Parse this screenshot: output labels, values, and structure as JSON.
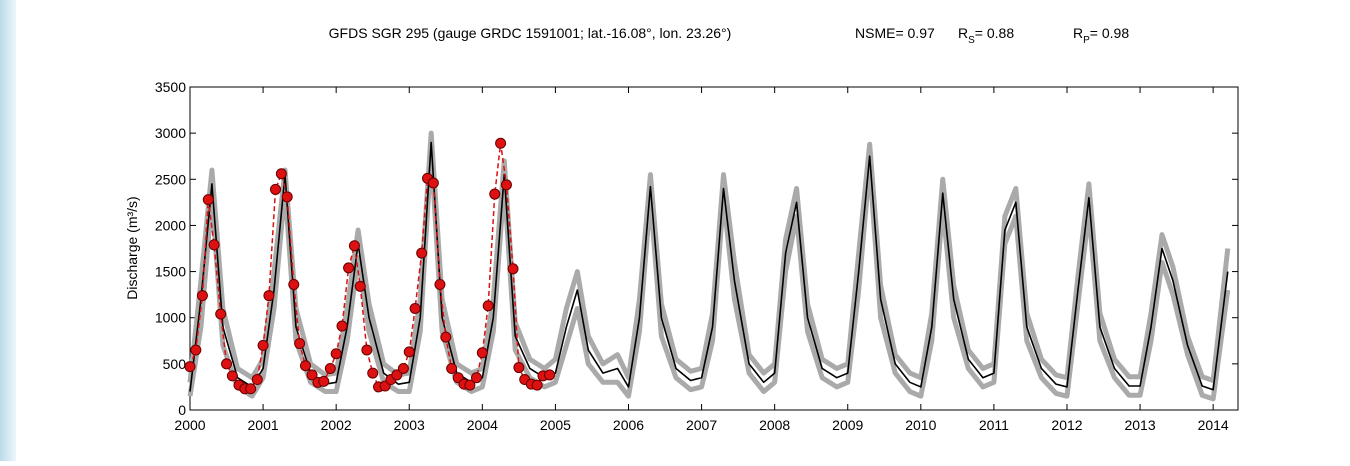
{
  "chart_data": {
    "type": "line",
    "title": "GFDS SGR 295 (gauge GRDC 1591001; lat.-16.08°, lon. 23.26°)",
    "stats": [
      {
        "main": "NSME= 0.97"
      },
      {
        "main": "R",
        "sub": "S",
        "rest": "=  0.88"
      },
      {
        "main": "R",
        "sub": "P",
        "rest": "= 0.98"
      }
    ],
    "y_label": "Discharge (m³/s)",
    "xlim": [
      2000,
      2014.34
    ],
    "xticks": [
      2000,
      2001,
      2002,
      2003,
      2004,
      2005,
      2006,
      2007,
      2008,
      2009,
      2010,
      2011,
      2012,
      2013,
      2014
    ],
    "ylim": [
      0,
      3500
    ],
    "yticks": [
      0,
      500,
      1000,
      1500,
      2000,
      2500,
      3000,
      3500
    ],
    "series": [
      {
        "color": "#aaaaaa",
        "width": 5,
        "marker": false,
        "dashed": false,
        "x": [
          2000,
          2000.15,
          2000.3,
          2000.45,
          2000.65,
          2000.85,
          2001,
          2001.15,
          2001.3,
          2001.45,
          2001.65,
          2001.85,
          2002,
          2002.15,
          2002.3,
          2002.45,
          2002.65,
          2002.85,
          2003,
          2003.15,
          2003.3,
          2003.45,
          2003.65,
          2003.85,
          2004,
          2004.15,
          2004.3,
          2004.45,
          2004.65,
          2004.85,
          2005,
          2005.15,
          2005.3,
          2005.45,
          2005.65,
          2005.85,
          2006,
          2006.15,
          2006.3,
          2006.45,
          2006.65,
          2006.85,
          2007,
          2007.15,
          2007.3,
          2007.45,
          2007.65,
          2007.85,
          2008,
          2008.15,
          2008.3,
          2008.45,
          2008.65,
          2008.85,
          2009,
          2009.15,
          2009.3,
          2009.45,
          2009.65,
          2009.85,
          2010,
          2010.15,
          2010.3,
          2010.45,
          2010.65,
          2010.85,
          2011,
          2011.15,
          2011.3,
          2011.45,
          2011.65,
          2011.85,
          2012,
          2012.15,
          2012.3,
          2012.45,
          2012.65,
          2012.85,
          2013,
          2013.15,
          2013.3,
          2013.45,
          2013.65,
          2013.85,
          2014,
          2014.2
        ],
        "values": [
          150,
          900,
          2300,
          700,
          250,
          150,
          350,
          1100,
          2400,
          750,
          300,
          200,
          200,
          750,
          1650,
          850,
          300,
          200,
          200,
          850,
          2800,
          850,
          300,
          200,
          250,
          850,
          2450,
          650,
          350,
          250,
          300,
          700,
          1100,
          500,
          300,
          300,
          150,
          850,
          2300,
          800,
          350,
          220,
          250,
          750,
          2300,
          1200,
          400,
          200,
          300,
          1500,
          2100,
          850,
          350,
          250,
          300,
          1300,
          2650,
          1000,
          400,
          200,
          150,
          750,
          2200,
          1000,
          450,
          250,
          300,
          1800,
          2100,
          750,
          350,
          180,
          150,
          1150,
          2150,
          750,
          350,
          160,
          160,
          750,
          1600,
          1250,
          600,
          160,
          120,
          1300
        ]
      },
      {
        "color": "#aaaaaa",
        "width": 5,
        "marker": false,
        "dashed": false,
        "x": [
          2000,
          2000.15,
          2000.3,
          2000.45,
          2000.65,
          2000.85,
          2001,
          2001.15,
          2001.3,
          2001.45,
          2001.65,
          2001.85,
          2002,
          2002.15,
          2002.3,
          2002.45,
          2002.65,
          2002.85,
          2003,
          2003.15,
          2003.3,
          2003.45,
          2003.65,
          2003.85,
          2004,
          2004.15,
          2004.3,
          2004.45,
          2004.65,
          2004.85,
          2005,
          2005.15,
          2005.3,
          2005.45,
          2005.65,
          2005.85,
          2006,
          2006.15,
          2006.3,
          2006.45,
          2006.65,
          2006.85,
          2007,
          2007.15,
          2007.3,
          2007.45,
          2007.65,
          2007.85,
          2008,
          2008.15,
          2008.3,
          2008.45,
          2008.65,
          2008.85,
          2009,
          2009.15,
          2009.3,
          2009.45,
          2009.65,
          2009.85,
          2010,
          2010.15,
          2010.3,
          2010.45,
          2010.65,
          2010.85,
          2011,
          2011.15,
          2011.3,
          2011.45,
          2011.65,
          2011.85,
          2012,
          2012.15,
          2012.3,
          2012.45,
          2012.65,
          2012.85,
          2013,
          2013.15,
          2013.3,
          2013.45,
          2013.65,
          2013.85,
          2014,
          2014.2
        ],
        "values": [
          300,
          1400,
          2600,
          1100,
          450,
          350,
          550,
          1500,
          2600,
          1100,
          500,
          380,
          400,
          1100,
          1950,
          1150,
          500,
          380,
          400,
          1200,
          3000,
          1200,
          500,
          400,
          450,
          1200,
          2700,
          950,
          550,
          450,
          550,
          1100,
          1500,
          800,
          500,
          600,
          350,
          1200,
          2550,
          1150,
          550,
          420,
          450,
          1050,
          2550,
          1600,
          600,
          400,
          500,
          1850,
          2400,
          1150,
          550,
          450,
          500,
          1700,
          2880,
          1350,
          600,
          400,
          350,
          1050,
          2500,
          1350,
          650,
          450,
          500,
          2100,
          2400,
          1050,
          550,
          380,
          350,
          1450,
          2450,
          1050,
          550,
          360,
          360,
          1050,
          1900,
          1550,
          800,
          360,
          320,
          1750
        ]
      },
      {
        "color": "#000000",
        "width": 1.6,
        "marker": false,
        "dashed": false,
        "x": [
          2000,
          2000.15,
          2000.3,
          2000.45,
          2000.65,
          2000.85,
          2001,
          2001.15,
          2001.3,
          2001.45,
          2001.65,
          2001.85,
          2002,
          2002.15,
          2002.3,
          2002.45,
          2002.65,
          2002.85,
          2003,
          2003.15,
          2003.3,
          2003.45,
          2003.65,
          2003.85,
          2004,
          2004.15,
          2004.3,
          2004.45,
          2004.65,
          2004.85,
          2005,
          2005.15,
          2005.3,
          2005.45,
          2005.65,
          2005.85,
          2006,
          2006.15,
          2006.3,
          2006.45,
          2006.65,
          2006.85,
          2007,
          2007.15,
          2007.3,
          2007.45,
          2007.65,
          2007.85,
          2008,
          2008.15,
          2008.3,
          2008.45,
          2008.65,
          2008.85,
          2009,
          2009.15,
          2009.3,
          2009.45,
          2009.65,
          2009.85,
          2010,
          2010.15,
          2010.3,
          2010.45,
          2010.65,
          2010.85,
          2011,
          2011.15,
          2011.3,
          2011.45,
          2011.65,
          2011.85,
          2012,
          2012.15,
          2012.3,
          2012.45,
          2012.65,
          2012.85,
          2013,
          2013.15,
          2013.3,
          2013.45,
          2013.65,
          2013.85,
          2014,
          2014.2
        ],
        "values": [
          200,
          1200,
          2450,
          900,
          350,
          250,
          450,
          1300,
          2550,
          900,
          400,
          280,
          300,
          900,
          1800,
          1000,
          400,
          280,
          300,
          1000,
          2900,
          1000,
          400,
          300,
          350,
          1000,
          2550,
          800,
          450,
          350,
          400,
          900,
          1300,
          650,
          400,
          450,
          250,
          1000,
          2420,
          1000,
          450,
          320,
          350,
          900,
          2400,
          1400,
          500,
          300,
          400,
          1700,
          2250,
          1000,
          450,
          350,
          400,
          1500,
          2750,
          1200,
          500,
          300,
          250,
          900,
          2350,
          1200,
          550,
          350,
          400,
          1950,
          2250,
          900,
          450,
          280,
          250,
          1300,
          2300,
          900,
          450,
          260,
          260,
          900,
          1750,
          1400,
          700,
          260,
          220,
          1500
        ]
      },
      {
        "color": "#dd1111",
        "width": 1.5,
        "marker": true,
        "dashed": true,
        "x": [
          2000,
          2000.08,
          2000.17,
          2000.25,
          2000.33,
          2000.42,
          2000.5,
          2000.58,
          2000.67,
          2000.75,
          2000.83,
          2000.92,
          2001,
          2001.08,
          2001.17,
          2001.25,
          2001.33,
          2001.42,
          2001.5,
          2001.58,
          2001.67,
          2001.75,
          2001.83,
          2001.92,
          2002,
          2002.08,
          2002.17,
          2002.25,
          2002.33,
          2002.42,
          2002.5,
          2002.58,
          2002.67,
          2002.75,
          2002.83,
          2002.92,
          2003,
          2003.08,
          2003.17,
          2003.25,
          2003.33,
          2003.42,
          2003.5,
          2003.58,
          2003.67,
          2003.75,
          2003.83,
          2003.92,
          2004,
          2004.08,
          2004.17,
          2004.25,
          2004.33,
          2004.42,
          2004.5,
          2004.58,
          2004.67,
          2004.75,
          2004.83,
          2004.92
        ],
        "values": [
          470,
          650,
          1240,
          2280,
          1790,
          1040,
          500,
          370,
          270,
          230,
          230,
          330,
          700,
          1240,
          2390,
          2560,
          2310,
          1360,
          720,
          480,
          380,
          300,
          310,
          450,
          610,
          910,
          1540,
          1780,
          1340,
          650,
          400,
          250,
          260,
          330,
          380,
          450,
          630,
          1100,
          1700,
          2510,
          2460,
          1360,
          790,
          450,
          350,
          280,
          270,
          350,
          620,
          1130,
          2340,
          2890,
          2440,
          1530,
          460,
          330,
          280,
          270,
          370,
          380
        ]
      }
    ]
  }
}
